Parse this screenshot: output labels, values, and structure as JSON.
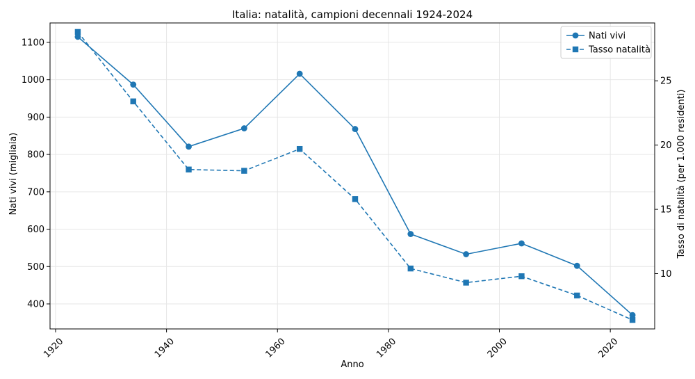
{
  "chart_data": {
    "type": "line",
    "title": "Italia: natalità, campioni decennali 1924-2024",
    "xlabel": "Anno",
    "ylabel_left": "Nati vivi (migliaia)",
    "ylabel_right": "Tasso di natalità (per 1.000 residenti)",
    "x": [
      1924,
      1934,
      1944,
      1954,
      1964,
      1974,
      1984,
      1994,
      2004,
      2014,
      2024
    ],
    "xlim": [
      1919,
      2028
    ],
    "ylim_left": [
      333,
      1152
    ],
    "ylim_right": [
      5.7,
      29.5
    ],
    "xticks": [
      1920,
      1940,
      1960,
      1980,
      2000,
      2020
    ],
    "yticks_left": [
      400,
      500,
      600,
      700,
      800,
      900,
      1000,
      1100
    ],
    "yticks_right": [
      10,
      15,
      20,
      25
    ],
    "grid": true,
    "legend_position": "top-right",
    "series": [
      {
        "name": "Nati vivi",
        "axis": "left",
        "marker": "circle",
        "linestyle": "solid",
        "color": "#1f77b4",
        "values": [
          1115,
          987,
          821,
          870,
          1016,
          868,
          587,
          533,
          562,
          502,
          370
        ]
      },
      {
        "name": "Tasso natalità",
        "axis": "right",
        "marker": "square",
        "linestyle": "dashed",
        "color": "#1f77b4",
        "values": [
          28.8,
          23.4,
          18.1,
          18.0,
          19.7,
          15.8,
          10.4,
          9.3,
          9.8,
          8.3,
          6.4
        ]
      }
    ]
  }
}
